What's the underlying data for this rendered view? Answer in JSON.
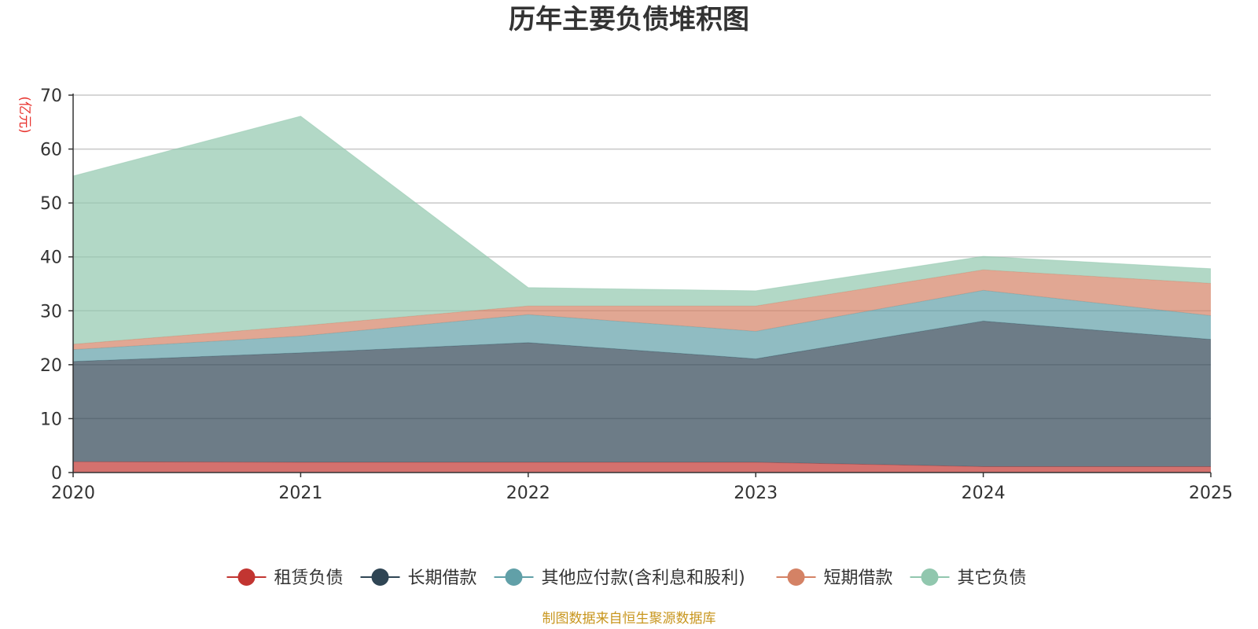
{
  "chart_data": {
    "type": "area",
    "stacked": true,
    "title": "历年主要负债堆积图",
    "ylabel": "(亿元)",
    "xlabel": "",
    "categories": [
      "2020",
      "2021",
      "2022",
      "2023",
      "2024",
      "2025"
    ],
    "ylim": [
      0,
      70
    ],
    "yticks": [
      0,
      10,
      20,
      30,
      40,
      50,
      60,
      70
    ],
    "grid": true,
    "legend_position": "bottom",
    "series": [
      {
        "name": "租赁负债",
        "color": "#c23531",
        "values": [
          2.0,
          1.9,
          1.9,
          1.9,
          1.1,
          1.1
        ]
      },
      {
        "name": "长期借款",
        "color": "#2f4554",
        "values": [
          18.6,
          20.3,
          22.2,
          19.2,
          27.0,
          23.6
        ]
      },
      {
        "name": "其他应付款(含利息和股利)",
        "color": "#61a0a8",
        "values": [
          2.2,
          3.1,
          5.2,
          5.1,
          5.7,
          4.4
        ]
      },
      {
        "name": "短期借款",
        "color": "#d48265",
        "values": [
          1.0,
          1.9,
          1.6,
          4.7,
          3.8,
          6.0
        ]
      },
      {
        "name": "其它负债",
        "color": "#91c7ae",
        "values": [
          31.2,
          38.9,
          3.4,
          2.8,
          2.5,
          2.7
        ]
      }
    ],
    "source": "制图数据来自恒生聚源数据库"
  }
}
